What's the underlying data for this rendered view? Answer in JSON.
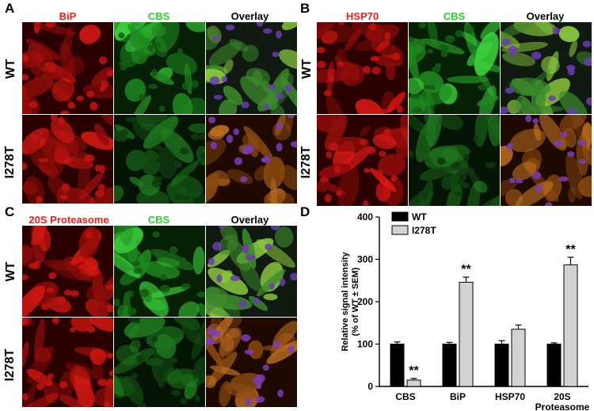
{
  "panels": {
    "A": {
      "letter": "A",
      "columns": [
        "BiP",
        "CBS",
        "Overlay"
      ],
      "rows": [
        "WT",
        "I278T"
      ]
    },
    "B": {
      "letter": "B",
      "columns": [
        "HSP70",
        "CBS",
        "Overlay"
      ],
      "rows": [
        "WT",
        "I278T"
      ]
    },
    "C": {
      "letter": "C",
      "columns": [
        "20S Proteasome",
        "CBS",
        "Overlay"
      ],
      "rows": [
        "WT",
        "I278T"
      ]
    },
    "D": {
      "letter": "D"
    }
  },
  "colors": {
    "red_channel": "#e8201c",
    "green_channel": "#2bd12b",
    "overlay_title": "#000000",
    "wt_bar": "#000000",
    "i278t_bar": "#d3d3d3"
  },
  "chart_data": {
    "type": "bar",
    "ylabel_line1": "Relative signal intensity",
    "ylabel_line2": "(% of WT ± SEM)",
    "ylim": [
      0,
      400
    ],
    "yticks": [
      "0",
      "100",
      "200",
      "300",
      "400"
    ],
    "categories": [
      "CBS",
      "BiP",
      "HSP70",
      "20S Proteasome"
    ],
    "category_lines": [
      [
        "CBS"
      ],
      [
        "BiP"
      ],
      [
        "HSP70"
      ],
      [
        "20S",
        "Proteasome"
      ]
    ],
    "series": [
      {
        "name": "WT",
        "values": [
          100,
          100,
          100,
          100
        ],
        "errors": [
          5,
          4,
          8,
          3
        ]
      },
      {
        "name": "I278T",
        "values": [
          15,
          246,
          135,
          287
        ],
        "errors": [
          4,
          12,
          10,
          18
        ]
      }
    ],
    "significance": [
      "**",
      "**",
      "",
      "**"
    ],
    "legend": "top-left"
  }
}
